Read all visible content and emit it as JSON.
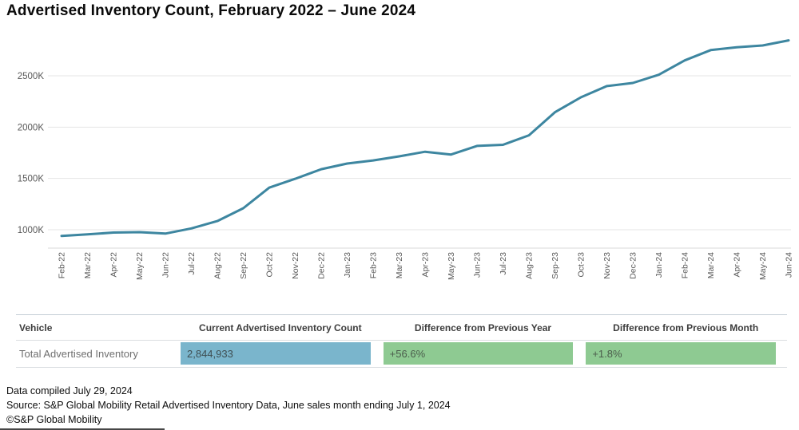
{
  "title": "Advertised Inventory Count, February 2022 – June 2024",
  "chart_data": {
    "type": "line",
    "title": "Advertised Inventory Count, February 2022 – June 2024",
    "series_name": "Total Advertised Inventory",
    "x": [
      "Feb-22",
      "Mar-22",
      "Apr-22",
      "May-22",
      "Jun-22",
      "Jul-22",
      "Aug-22",
      "Sep-22",
      "Oct-22",
      "Nov-22",
      "Dec-22",
      "Jan-23",
      "Feb-23",
      "Mar-23",
      "Apr-23",
      "May-23",
      "Jun-23",
      "Jul-23",
      "Aug-23",
      "Sep-23",
      "Oct-23",
      "Nov-23",
      "Dec-23",
      "Jan-24",
      "Feb-24",
      "Mar-24",
      "Apr-24",
      "May-24",
      "Jun-24"
    ],
    "values_k": [
      940,
      955,
      973,
      977,
      963,
      1013,
      1085,
      1210,
      1410,
      1497,
      1590,
      1645,
      1675,
      1715,
      1760,
      1733,
      1817,
      1828,
      1920,
      2145,
      2290,
      2400,
      2430,
      2510,
      2650,
      2750,
      2778,
      2795,
      2845
    ],
    "y_ticks_k": [
      1000,
      1500,
      2000,
      2500
    ],
    "y_tick_labels": [
      "1000K",
      "1500K",
      "2000K",
      "2500K"
    ],
    "ylim_k": [
      820,
      2900
    ],
    "xlabel": "",
    "ylabel": "",
    "grid": "horizontal",
    "legend": "none",
    "line_color": "#3d86a0",
    "grid_color": "#e4e4e4",
    "axis_color": "#d8d8d8",
    "tick_text_color": "#585858"
  },
  "table": {
    "headers": [
      "Vehicle",
      "Current Advertised Inventory Count",
      "Difference from Previous Year",
      "Difference from Previous Month"
    ],
    "row": {
      "vehicle": "Total Advertised Inventory",
      "current_count": "2,844,933",
      "diff_prev_year": "+56.6%",
      "diff_prev_month": "+1.8%"
    },
    "count_cell_color": "#7ab5cc",
    "diff_cell_color": "#8eca92"
  },
  "footer": {
    "compiled": "Data compiled July 29, 2024",
    "source": "Source: S&P Global Mobility Retail Advertised Inventory Data, June sales month ending July 1, 2024",
    "copyright": "©S&P Global Mobility"
  }
}
